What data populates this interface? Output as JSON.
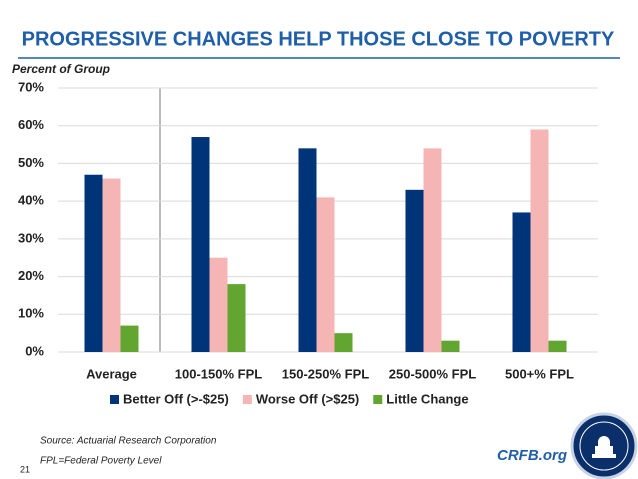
{
  "chart_data": {
    "type": "bar",
    "title": "PROGRESSIVE CHANGES HELP THOSE CLOSE TO POVERTY",
    "y_label": "Percent of Group",
    "categories": [
      "Average",
      "100-150% FPL",
      "150-250% FPL",
      "250-500% FPL",
      "500+% FPL"
    ],
    "series": [
      {
        "name": "Better Off (>-$25)",
        "color": "#003478",
        "values": [
          47,
          57,
          54,
          43,
          37
        ]
      },
      {
        "name": "Worse Off (>$25)",
        "color": "#f6b5b5",
        "values": [
          46,
          25,
          41,
          54,
          59
        ]
      },
      {
        "name": "Little Change",
        "color": "#62a531",
        "values": [
          7,
          18,
          5,
          3,
          3
        ]
      }
    ],
    "ylim": [
      0,
      70
    ],
    "yticks": [
      {
        "value": 0,
        "label": "0%"
      },
      {
        "value": 10,
        "label": "10%"
      },
      {
        "value": 20,
        "label": "20%"
      },
      {
        "value": 30,
        "label": "30%"
      },
      {
        "value": 40,
        "label": "40%"
      },
      {
        "value": 50,
        "label": "50%"
      },
      {
        "value": 60,
        "label": "60%"
      },
      {
        "value": 70,
        "label": "70%"
      }
    ],
    "grid": true,
    "legend": "bottom"
  },
  "footer": {
    "source": "Source: Actuarial Research Corporation",
    "note": "FPL=Federal Poverty Level",
    "site": "CRFB.org",
    "page": "21"
  }
}
